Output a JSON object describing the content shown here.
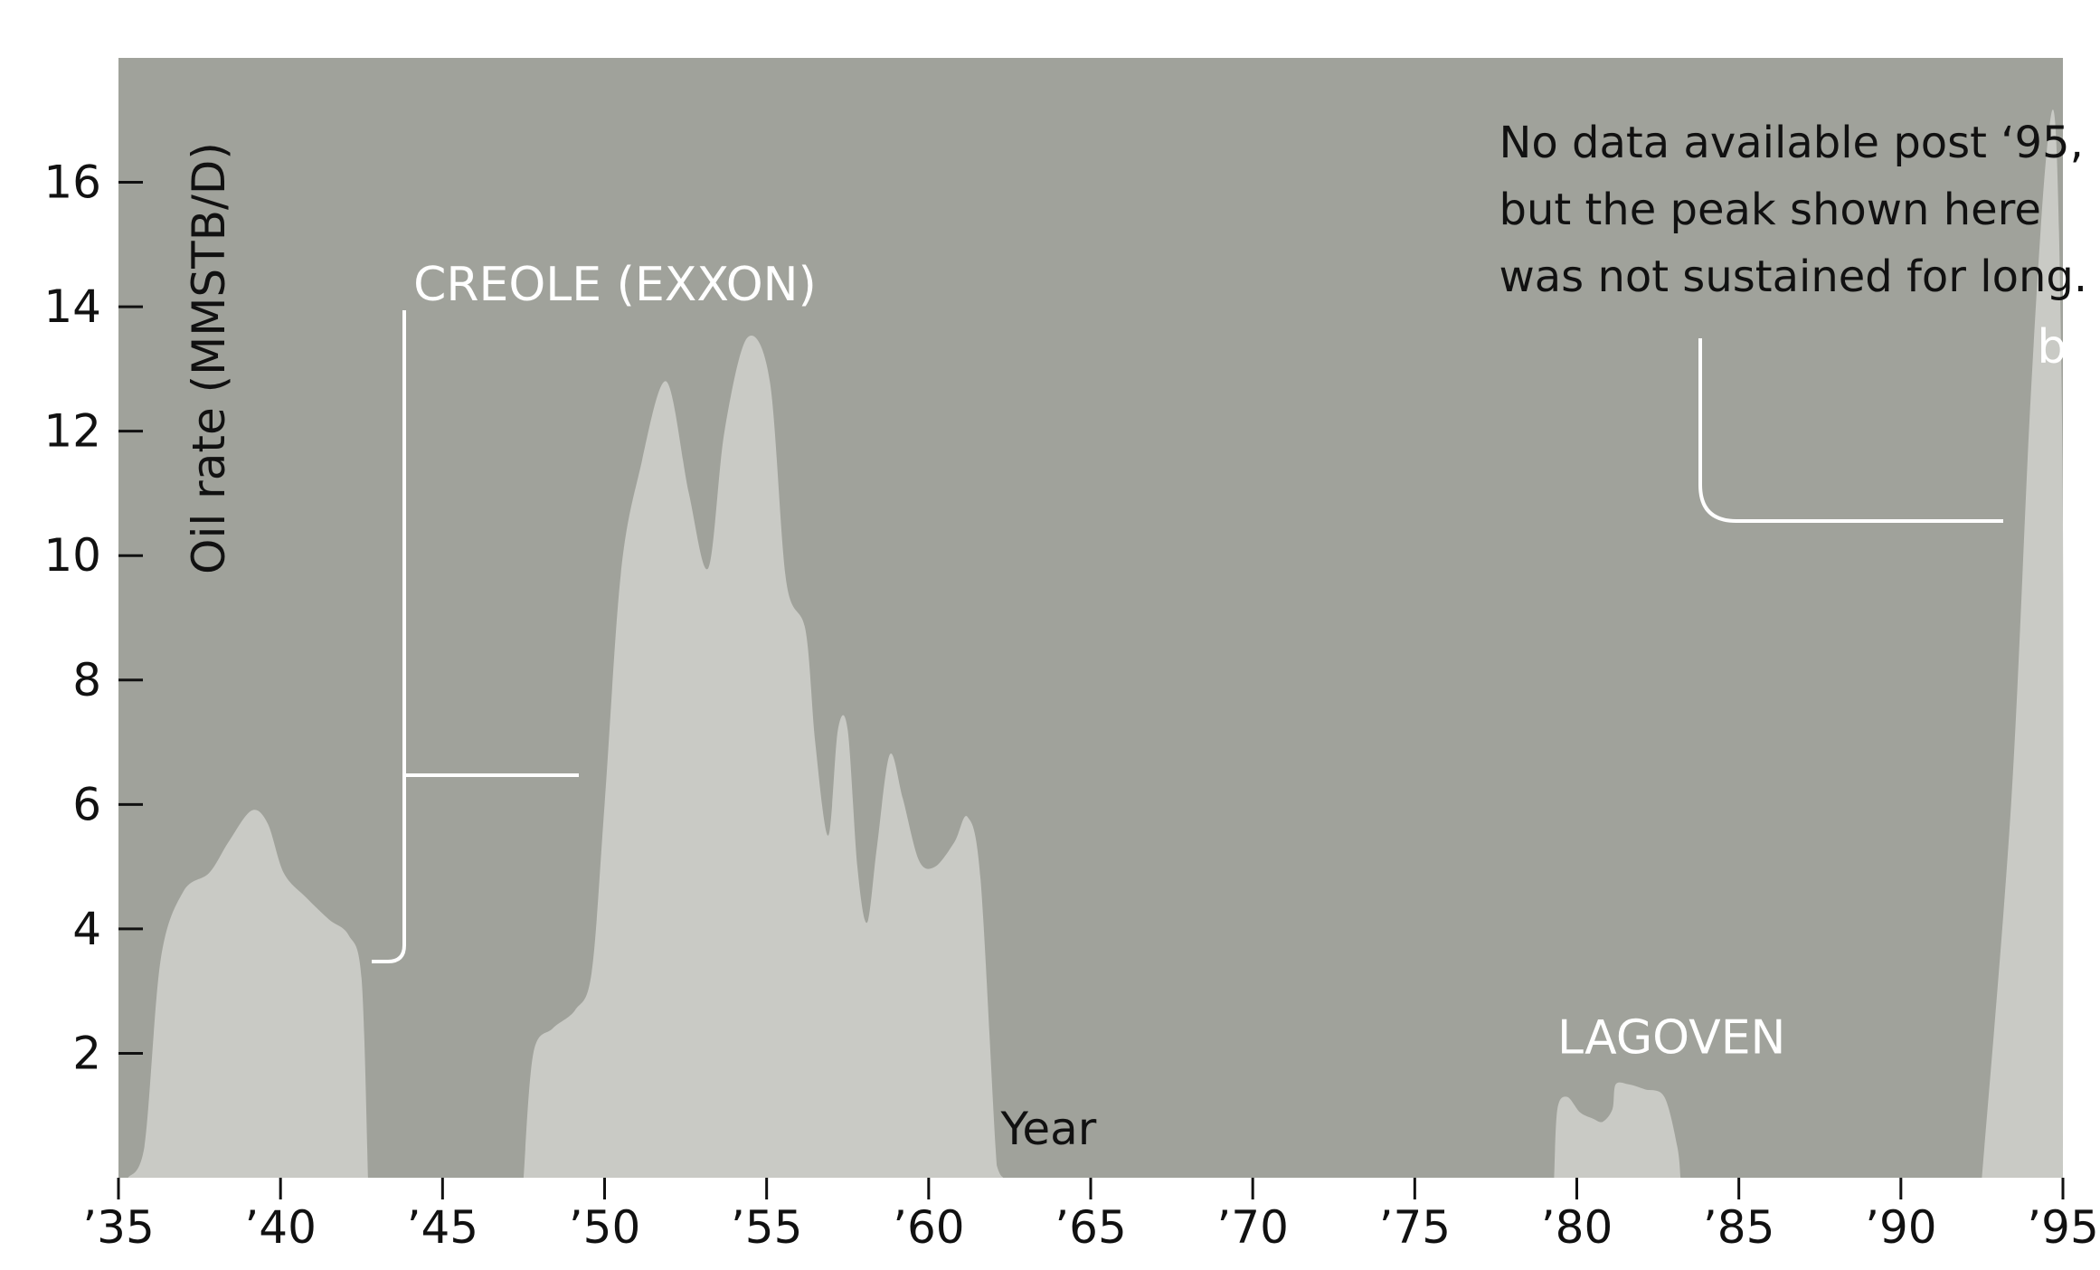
{
  "chart_data": {
    "type": "area",
    "title": "",
    "xlabel": "Year",
    "ylabel": "Oil rate (MMSTB/D)",
    "xlim": [
      1935,
      1995
    ],
    "ylim": [
      0,
      18
    ],
    "x_ticks": [
      {
        "value": 1935,
        "label": "’35"
      },
      {
        "value": 1940,
        "label": "’40"
      },
      {
        "value": 1945,
        "label": "’45"
      },
      {
        "value": 1950,
        "label": "’50"
      },
      {
        "value": 1955,
        "label": "’55"
      },
      {
        "value": 1960,
        "label": "’60"
      },
      {
        "value": 1965,
        "label": "’65"
      },
      {
        "value": 1970,
        "label": "’70"
      },
      {
        "value": 1975,
        "label": "’75"
      },
      {
        "value": 1980,
        "label": "’80"
      },
      {
        "value": 1985,
        "label": "’85"
      },
      {
        "value": 1990,
        "label": "’90"
      },
      {
        "value": 1995,
        "label": "’95"
      }
    ],
    "y_ticks": [
      {
        "value": 2,
        "label": "2"
      },
      {
        "value": 4,
        "label": "4"
      },
      {
        "value": 6,
        "label": "6"
      },
      {
        "value": 8,
        "label": "8"
      },
      {
        "value": 10,
        "label": "10"
      },
      {
        "value": 12,
        "label": "12"
      },
      {
        "value": 14,
        "label": "14"
      },
      {
        "value": 16,
        "label": "16"
      }
    ],
    "grid": false,
    "colors": {
      "plot_background": "#a0a29b",
      "fill": "#c9cac5",
      "callout": "#ffffff",
      "text": "#111111"
    },
    "series": [
      {
        "points": [
          [
            1935.3,
            0
          ],
          [
            1935.8,
            0.5
          ],
          [
            1936.3,
            3.5
          ],
          [
            1937,
            4.6
          ],
          [
            1937.8,
            4.9
          ],
          [
            1938.4,
            5.4
          ],
          [
            1939.1,
            5.9
          ],
          [
            1939.6,
            5.7
          ],
          [
            1940.1,
            4.9
          ],
          [
            1940.8,
            4.5
          ],
          [
            1941.5,
            4.15
          ],
          [
            1942.1,
            3.9
          ],
          [
            1942.5,
            3.2
          ],
          [
            1942.7,
            0
          ]
        ]
      },
      {
        "points": [
          [
            1947.5,
            0
          ],
          [
            1947.8,
            2.0
          ],
          [
            1948.4,
            2.4
          ],
          [
            1949.1,
            2.7
          ],
          [
            1949.6,
            3.3
          ],
          [
            1950,
            6.0
          ],
          [
            1950.5,
            9.7
          ],
          [
            1951.1,
            11.4
          ],
          [
            1951.9,
            12.8
          ],
          [
            1952.6,
            11.0
          ],
          [
            1953.2,
            9.8
          ],
          [
            1953.7,
            12.0
          ],
          [
            1954.4,
            13.5
          ],
          [
            1955.1,
            12.8
          ],
          [
            1955.6,
            9.6
          ],
          [
            1956.2,
            8.8
          ],
          [
            1956.5,
            7.0
          ],
          [
            1956.9,
            5.5
          ],
          [
            1957.2,
            7.2
          ],
          [
            1957.5,
            7.2
          ],
          [
            1957.8,
            5.0
          ],
          [
            1958.1,
            4.1
          ],
          [
            1958.4,
            5.3
          ],
          [
            1958.8,
            6.8
          ],
          [
            1959.2,
            6.1
          ],
          [
            1959.7,
            5.1
          ],
          [
            1960.2,
            5.0
          ],
          [
            1960.8,
            5.4
          ],
          [
            1961.2,
            5.8
          ],
          [
            1961.6,
            4.8
          ],
          [
            1962.1,
            0.2
          ],
          [
            1962.3,
            0
          ]
        ]
      },
      {
        "points": [
          [
            1979.3,
            0
          ],
          [
            1979.4,
            1.1
          ],
          [
            1979.7,
            1.3
          ],
          [
            1980.1,
            1.05
          ],
          [
            1980.5,
            0.95
          ],
          [
            1980.8,
            0.9
          ],
          [
            1981.1,
            1.1
          ],
          [
            1981.2,
            1.5
          ],
          [
            1981.6,
            1.5
          ],
          [
            1982.1,
            1.42
          ],
          [
            1982.7,
            1.3
          ],
          [
            1983.1,
            0.5
          ],
          [
            1983.2,
            0
          ]
        ]
      },
      {
        "points": [
          [
            1992.5,
            0
          ],
          [
            1993.4,
            6.0
          ],
          [
            1994.0,
            12.5
          ],
          [
            1994.5,
            16.5
          ],
          [
            1994.8,
            16.6
          ],
          [
            1995,
            10.5
          ],
          [
            1995,
            0
          ]
        ]
      }
    ],
    "annotations": [
      {
        "label": "CREOLE (EXXON)",
        "x": 1944.1,
        "y": 14.1
      },
      {
        "lines": [
          "No data available post ‘95,",
          "but the peak shown here",
          "was not sustained for long."
        ],
        "x": 1977.6,
        "y": 16.4
      },
      {
        "label": "bp",
        "x": 1994.2,
        "y": 13.1
      },
      {
        "label": "LAGOVEN",
        "x": 1979.4,
        "y": 2.0
      }
    ]
  }
}
